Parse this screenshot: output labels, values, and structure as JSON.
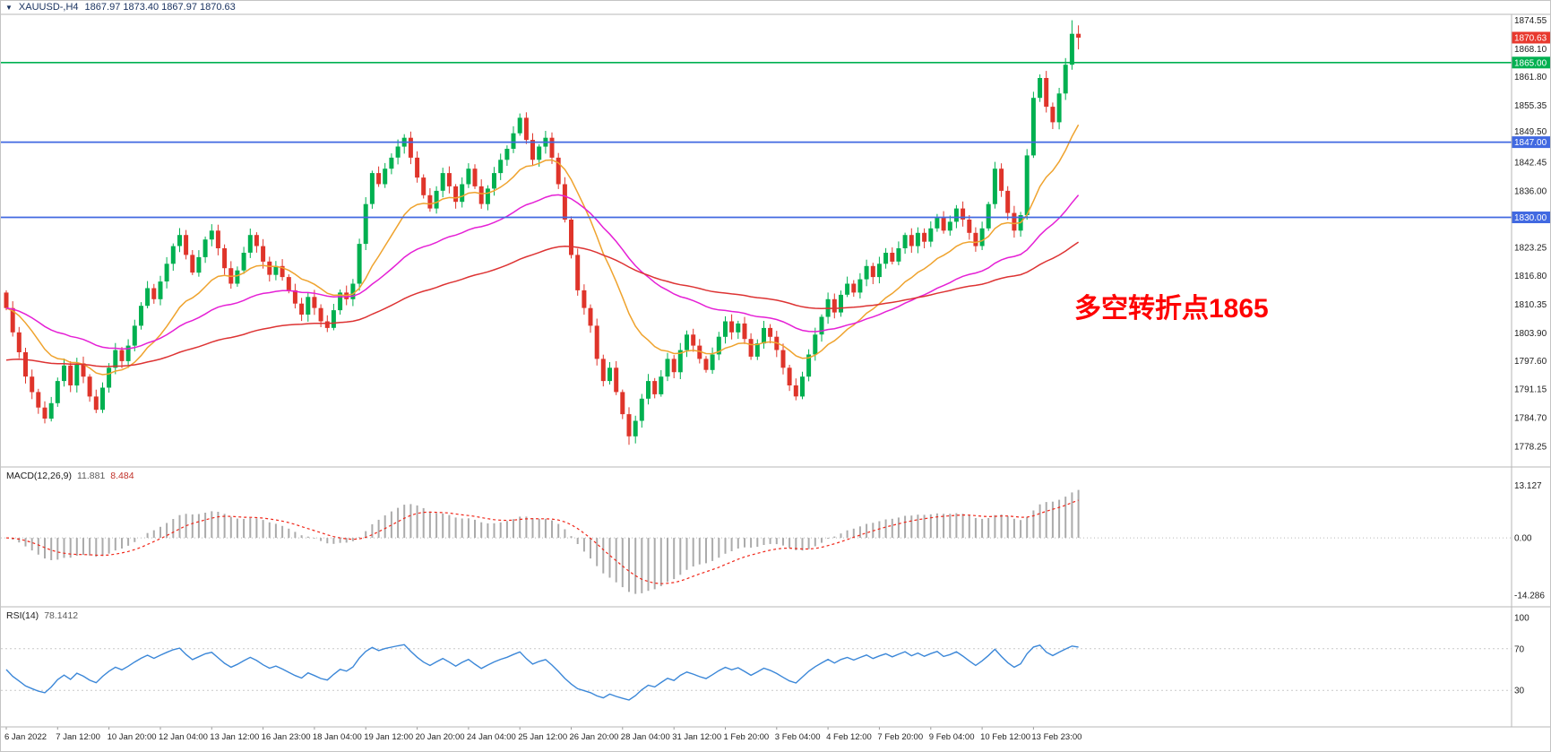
{
  "header": {
    "marker": "▼",
    "symbol": "XAUUSD-,H4",
    "ohlc": "1867.97 1873.40 1867.97 1870.63",
    "color": "#17305e"
  },
  "annotation": {
    "text": "多空转折点1865",
    "color": "#fe0000"
  },
  "levels": [
    {
      "name": "hline-1865",
      "price": 1865.0,
      "color": "#00b050"
    },
    {
      "name": "hline-1847",
      "price": 1847.0,
      "color": "#4169e1"
    },
    {
      "name": "hline-1830",
      "price": 1830.0,
      "color": "#4169e1"
    }
  ],
  "price_axis": {
    "tick_labels": [
      "1874.55",
      "1868.10",
      "1861.80",
      "1855.35",
      "1849.50",
      "1842.45",
      "1836.00",
      "1823.25",
      "1816.80",
      "1810.35",
      "1803.90",
      "1797.60",
      "1791.15",
      "1784.70",
      "1778.25"
    ],
    "badges": [
      {
        "name": "current-price",
        "label": "1870.63",
        "price": 1870.63,
        "bg": "#e8392e"
      },
      {
        "name": "level-1865",
        "label": "1865.00",
        "price": 1865.0,
        "bg": "#00b050"
      },
      {
        "name": "level-1847",
        "label": "1847.00",
        "price": 1847.0,
        "bg": "#4169e1"
      },
      {
        "name": "level-1830",
        "label": "1830.00",
        "price": 1830.0,
        "bg": "#4169e1"
      }
    ]
  },
  "macd_panel": {
    "title": "MACD(12,26,9)",
    "main_value": "11.881",
    "signal_value": "8.484",
    "axis_labels": [
      "13.127",
      "0.00",
      "-14.286"
    ],
    "axis_values": [
      13.127,
      0,
      -14.286
    ],
    "range": [
      -15.4,
      13.9
    ],
    "histogram_color": "#ababab",
    "signal_color": "#f02618"
  },
  "rsi_panel": {
    "title": "RSI(14)",
    "value": "78.1412",
    "axis_labels": [
      "100",
      "70",
      "30"
    ],
    "axis_values": [
      100,
      70,
      30
    ],
    "guide_levels": [
      70,
      30
    ],
    "line_color": "#3b87d8"
  },
  "time_axis": {
    "bars_per_label": 8,
    "labels": [
      "6 Jan 2022",
      "7 Jan 12:00",
      "10 Jan 20:00",
      "12 Jan 04:00",
      "13 Jan 12:00",
      "16 Jan 23:00",
      "18 Jan 04:00",
      "19 Jan 12:00",
      "20 Jan 20:00",
      "24 Jan 04:00",
      "25 Jan 12:00",
      "26 Jan 20:00",
      "28 Jan 04:00",
      "31 Jan 12:00",
      "1 Feb 20:00",
      "3 Feb 04:00",
      "4 Feb 12:00",
      "7 Feb 20:00",
      "9 Feb 04:00",
      "10 Feb 12:00",
      "13 Feb 23:00"
    ]
  },
  "chart_data": {
    "type": "candlestick",
    "title": "XAUUSD-,H4",
    "symbol": "XAUUSD-",
    "timeframe": "H4",
    "ohlc_current": {
      "open": 1867.97,
      "high": 1873.4,
      "low": 1867.97,
      "close": 1870.63
    },
    "last_price": 1870.63,
    "ylim": [
      1776.0,
      1876.5
    ],
    "y_ticks": [
      1874.55,
      1868.1,
      1861.8,
      1855.35,
      1849.5,
      1842.45,
      1836.0,
      1823.25,
      1816.8,
      1810.35,
      1803.9,
      1797.6,
      1791.15,
      1784.7,
      1778.25
    ],
    "horizontal_lines": [
      1865.0,
      1847.0,
      1830.0
    ],
    "x_tick_labels": [
      "6 Jan 2022",
      "7 Jan 12:00",
      "10 Jan 20:00",
      "12 Jan 04:00",
      "13 Jan 12:00",
      "16 Jan 23:00",
      "18 Jan 04:00",
      "19 Jan 12:00",
      "20 Jan 20:00",
      "24 Jan 04:00",
      "25 Jan 12:00",
      "26 Jan 20:00",
      "28 Jan 04:00",
      "31 Jan 12:00",
      "1 Feb 20:00",
      "3 Feb 04:00",
      "4 Feb 12:00",
      "7 Feb 20:00",
      "9 Feb 04:00",
      "10 Feb 12:00",
      "13 Feb 23:00"
    ],
    "first_open": 1813.0,
    "closes": [
      1809.5,
      1804,
      1799.5,
      1794,
      1790.5,
      1787,
      1784.5,
      1788,
      1793,
      1796.5,
      1792,
      1797,
      1794,
      1789.5,
      1786.5,
      1791.5,
      1796,
      1800,
      1797.5,
      1801,
      1805.5,
      1810,
      1814,
      1811.5,
      1815.5,
      1819.5,
      1823.5,
      1826,
      1821.5,
      1817.5,
      1821,
      1825,
      1827,
      1823,
      1818.5,
      1815,
      1818,
      1822,
      1826,
      1823.5,
      1820,
      1817,
      1819,
      1816.5,
      1813.5,
      1810.5,
      1808,
      1812,
      1809.5,
      1806.5,
      1805,
      1809,
      1813,
      1811.5,
      1815,
      1824,
      1833,
      1840,
      1837.5,
      1841,
      1843.5,
      1846,
      1848,
      1843.5,
      1839,
      1835,
      1832,
      1836,
      1840,
      1837,
      1833.5,
      1837.5,
      1841,
      1837,
      1833,
      1836.5,
      1840,
      1843,
      1845.5,
      1849,
      1852.5,
      1847.5,
      1843,
      1846,
      1848,
      1843.5,
      1837.5,
      1829.5,
      1821.5,
      1813.5,
      1809.5,
      1805.5,
      1798,
      1793,
      1796,
      1790.5,
      1785.5,
      1780.5,
      1784,
      1789,
      1793,
      1790,
      1794,
      1798,
      1795,
      1800,
      1803.5,
      1801,
      1798,
      1795.5,
      1799,
      1803,
      1806.5,
      1804,
      1806,
      1802.5,
      1798.5,
      1801.5,
      1805,
      1803,
      1800,
      1796,
      1792,
      1789.5,
      1794,
      1799,
      1803.5,
      1807.5,
      1811.5,
      1808.5,
      1812.5,
      1815,
      1813,
      1816,
      1819,
      1816.5,
      1819.5,
      1822,
      1820,
      1823,
      1826,
      1823.5,
      1826.5,
      1824.5,
      1827.5,
      1830,
      1827,
      1829,
      1832,
      1829.5,
      1826.5,
      1823.5,
      1827.5,
      1833,
      1841,
      1836,
      1831,
      1827,
      1830.5,
      1844,
      1857,
      1861.5,
      1855,
      1851.5,
      1858,
      1864.5,
      1871.5,
      1870.63
    ],
    "wick_overrides": {
      "97": {
        "low": 1778.6
      },
      "166": {
        "high": 1874.55
      },
      "167": {
        "high": 1873.4,
        "low": 1867.97
      }
    },
    "up_color": "#00b050",
    "down_color": "#df342a",
    "ma_lines": [
      {
        "name": "ma-fast",
        "period": 16,
        "color": "#efa32e"
      },
      {
        "name": "ma-mid",
        "period": 42,
        "color": "#e520d5"
      },
      {
        "name": "ma-slow",
        "period": 95,
        "color": "#dd3333",
        "seed": 1797.5
      }
    ],
    "macd": {
      "fast": 12,
      "slow": 26,
      "signal": 9
    },
    "rsi_period": 14
  }
}
